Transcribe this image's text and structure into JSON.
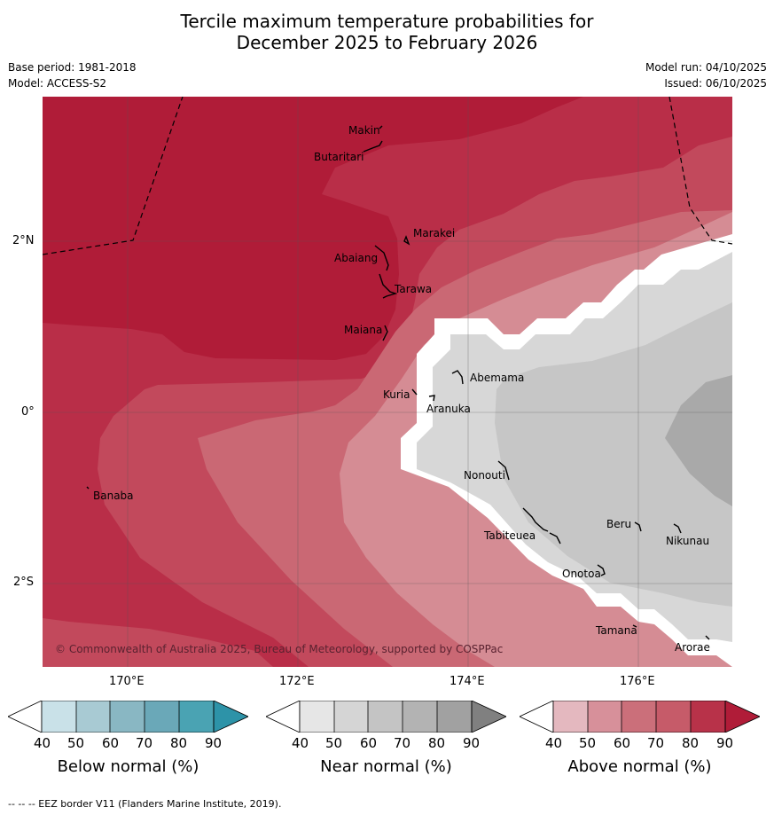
{
  "title": {
    "line1": "Tercile maximum temperature probabilities for",
    "line2": "December 2025 to February 2026"
  },
  "meta": {
    "base_period": "Base period: 1981-2018",
    "model": "Model: ACCESS-S2",
    "model_run": "Model run: 04/10/2025",
    "issued": "Issued: 06/10/2025"
  },
  "map": {
    "lat_labels": [
      "2°N",
      "0°",
      "2°S"
    ],
    "lon_labels": [
      "170°E",
      "172°E",
      "174°E",
      "176°E"
    ],
    "islands": [
      "Makin",
      "Butaritari",
      "Marakei",
      "Abaiang",
      "Tarawa",
      "Maiana",
      "Abemama",
      "Kuria",
      "Aranuka",
      "Banaba",
      "Nonouti",
      "Tabiteuea",
      "Beru",
      "Nikunau",
      "Onotoa",
      "Tamana",
      "Arorae"
    ],
    "copyright": "© Commonwealth of Australia 2025, Bureau of Meteorology, supported by COSPPac",
    "colors": {
      "above_90": "#b01c38",
      "above_80": "#b92e48",
      "above_70": "#c2495c",
      "above_60": "#ca6874",
      "above_50": "#d58c94",
      "near_50": "#d7d7d7",
      "near_60": "#c6c6c6",
      "near_70": "#a9a9a9",
      "white": "#ffffff"
    }
  },
  "colorbars": [
    {
      "name": "below",
      "label": "Below normal (%)",
      "ticks": [
        "40",
        "50",
        "60",
        "70",
        "80",
        "90"
      ],
      "colors": [
        "#ffffff",
        "#c9e1e8",
        "#a8cad3",
        "#89b7c3",
        "#6aa8b8",
        "#4aa3b3",
        "#2d93a8"
      ]
    },
    {
      "name": "near",
      "label": "Near normal (%)",
      "ticks": [
        "40",
        "50",
        "60",
        "70",
        "80",
        "90"
      ],
      "colors": [
        "#ffffff",
        "#e6e6e6",
        "#d5d5d5",
        "#c4c4c4",
        "#b3b3b3",
        "#a1a1a1",
        "#808080"
      ]
    },
    {
      "name": "above",
      "label": "Above normal (%)",
      "ticks": [
        "40",
        "50",
        "60",
        "70",
        "80",
        "90"
      ],
      "colors": [
        "#ffffff",
        "#e4b8bf",
        "#d7909a",
        "#cb6f7a",
        "#c65b69",
        "#b83249",
        "#b01c38"
      ]
    }
  ],
  "footer": "--  --  -- EEZ border V11 (Flanders Marine Institute, 2019)."
}
